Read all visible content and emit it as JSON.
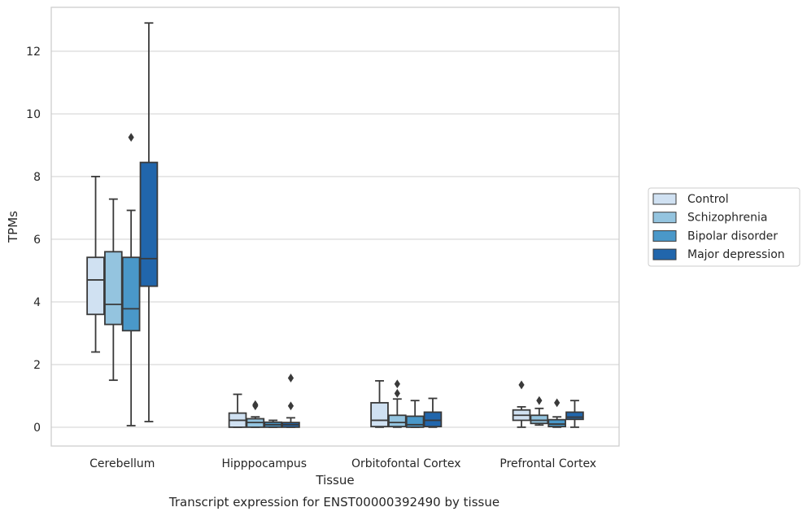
{
  "chart_data": {
    "type": "box",
    "title": "Transcript expression for ENST00000392490 by tissue",
    "xlabel": "Tissue",
    "ylabel": "TPMs",
    "ylim": [
      -0.6,
      13.4
    ],
    "yticks": [
      0,
      2,
      4,
      6,
      8,
      10,
      12
    ],
    "grid": true,
    "legend_position": "right",
    "categories": [
      "Cerebellum",
      "Hipppocampus",
      "Orbitofontal Cortex",
      "Prefrontal Cortex"
    ],
    "series": [
      {
        "name": "Control",
        "color": "#d0e1f2",
        "boxes": [
          {
            "min": 2.4,
            "q1": 3.6,
            "median": 4.7,
            "q3": 5.42,
            "max": 8.0,
            "outliers": []
          },
          {
            "min": 0.0,
            "q1": 0.0,
            "median": 0.22,
            "q3": 0.45,
            "max": 1.05,
            "outliers": []
          },
          {
            "min": 0.0,
            "q1": 0.02,
            "median": 0.22,
            "q3": 0.78,
            "max": 1.48,
            "outliers": []
          },
          {
            "min": 0.0,
            "q1": 0.22,
            "median": 0.38,
            "q3": 0.55,
            "max": 0.65,
            "outliers": [
              1.35
            ]
          }
        ]
      },
      {
        "name": "Schizophrenia",
        "color": "#94c4df",
        "boxes": [
          {
            "min": 1.5,
            "q1": 3.28,
            "median": 3.92,
            "q3": 5.6,
            "max": 7.28,
            "outliers": []
          },
          {
            "min": 0.0,
            "q1": 0.0,
            "median": 0.15,
            "q3": 0.27,
            "max": 0.33,
            "outliers": [
              0.72,
              0.68
            ]
          },
          {
            "min": 0.0,
            "q1": 0.02,
            "median": 0.15,
            "q3": 0.38,
            "max": 0.9,
            "outliers": [
              1.38,
              1.08
            ]
          },
          {
            "min": 0.07,
            "q1": 0.12,
            "median": 0.22,
            "q3": 0.38,
            "max": 0.6,
            "outliers": [
              0.85
            ]
          }
        ]
      },
      {
        "name": "Bipolar disorder",
        "color": "#4a98c9",
        "boxes": [
          {
            "min": 0.05,
            "q1": 3.08,
            "median": 3.78,
            "q3": 5.42,
            "max": 6.92,
            "outliers": [
              9.25
            ]
          },
          {
            "min": 0.0,
            "q1": 0.0,
            "median": 0.08,
            "q3": 0.16,
            "max": 0.22,
            "outliers": []
          },
          {
            "min": 0.0,
            "q1": 0.0,
            "median": 0.08,
            "q3": 0.35,
            "max": 0.85,
            "outliers": []
          },
          {
            "min": 0.0,
            "q1": 0.02,
            "median": 0.1,
            "q3": 0.24,
            "max": 0.33,
            "outliers": [
              0.78
            ]
          }
        ]
      },
      {
        "name": "Major depression",
        "color": "#2166ac",
        "boxes": [
          {
            "min": 0.18,
            "q1": 4.5,
            "median": 5.38,
            "q3": 8.45,
            "max": 12.9,
            "outliers": []
          },
          {
            "min": 0.0,
            "q1": 0.0,
            "median": 0.08,
            "q3": 0.15,
            "max": 0.3,
            "outliers": [
              1.57,
              0.68
            ]
          },
          {
            "min": 0.0,
            "q1": 0.02,
            "median": 0.22,
            "q3": 0.48,
            "max": 0.92,
            "outliers": []
          },
          {
            "min": 0.0,
            "q1": 0.25,
            "median": 0.32,
            "q3": 0.48,
            "max": 0.85,
            "outliers": []
          }
        ]
      }
    ]
  }
}
